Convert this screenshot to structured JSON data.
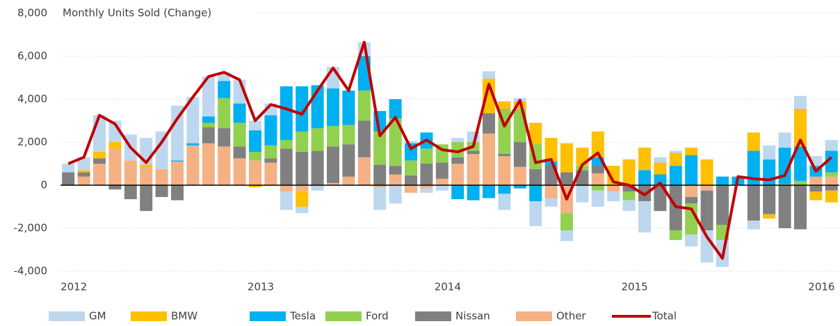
{
  "chart_data": {
    "type": "bar",
    "stacked": true,
    "title": "Monthly Units Sold (Change)",
    "categories": [
      "2012",
      null,
      null,
      null,
      null,
      null,
      null,
      null,
      null,
      null,
      null,
      null,
      "2013",
      null,
      null,
      null,
      null,
      null,
      null,
      null,
      null,
      null,
      null,
      null,
      "2014",
      null,
      null,
      null,
      null,
      null,
      null,
      null,
      null,
      null,
      null,
      null,
      "2015",
      null,
      null,
      null,
      null,
      null,
      null,
      null,
      null,
      null,
      null,
      null,
      "2016",
      null
    ],
    "ylim": [
      -4000,
      8000
    ],
    "yticks": [
      {
        "value": -4000,
        "label": "-4,000"
      },
      {
        "value": -2000,
        "label": "-2,000"
      },
      0,
      {
        "value": 2000,
        "label": "2,000"
      },
      {
        "value": 4000,
        "label": "4,000"
      },
      {
        "value": 6000,
        "label": "6,000"
      },
      {
        "value": 8000,
        "label": "8,000"
      }
    ],
    "grid": true,
    "legend": "bottom",
    "series": [
      {
        "name": "GM",
        "color": "#bdd7ee",
        "values": [
          400,
          600,
          1700,
          1000,
          1200,
          1250,
          1750,
          2550,
          2150,
          1850,
          400,
          1100,
          450,
          550,
          -850,
          -300,
          -250,
          1000,
          0,
          650,
          -1050,
          -850,
          100,
          -200,
          -250,
          200,
          500,
          350,
          -750,
          150,
          -1150,
          -400,
          -500,
          -800,
          -750,
          -450,
          -500,
          -1450,
          250,
          100,
          -550,
          -1500,
          -1250,
          0,
          -400,
          650,
          700,
          600,
          450,
          500
        ]
      },
      {
        "name": "BMW",
        "color": "#ffc000",
        "values": [
          0,
          100,
          300,
          300,
          0,
          100,
          0,
          0,
          0,
          0,
          0,
          0,
          -100,
          0,
          0,
          -700,
          0,
          0,
          0,
          0,
          0,
          0,
          0,
          0,
          0,
          0,
          0,
          1600,
          350,
          350,
          1000,
          1100,
          1350,
          850,
          1200,
          900,
          1200,
          1050,
          550,
          600,
          350,
          1200,
          0,
          0,
          850,
          -200,
          0,
          1750,
          -400,
          -550
        ]
      },
      {
        "name": "Tesla",
        "color": "#00b0f0",
        "values": [
          0,
          0,
          0,
          0,
          0,
          0,
          0,
          50,
          100,
          300,
          800,
          900,
          1000,
          1400,
          2500,
          2100,
          2000,
          1750,
          1600,
          1600,
          950,
          900,
          800,
          750,
          0,
          -650,
          -700,
          -600,
          -400,
          -150,
          -750,
          150,
          0,
          0,
          400,
          0,
          0,
          700,
          500,
          900,
          1400,
          0,
          400,
          400,
          1600,
          1200,
          1700,
          1600,
          500,
          1000
        ]
      },
      {
        "name": "Ford",
        "color": "#92d050",
        "values": [
          0,
          0,
          0,
          0,
          0,
          0,
          0,
          0,
          0,
          200,
          1400,
          1100,
          400,
          600,
          400,
          950,
          1050,
          950,
          900,
          1400,
          1550,
          2200,
          700,
          700,
          850,
          700,
          400,
          0,
          2100,
          1550,
          1150,
          0,
          -800,
          200,
          -250,
          0,
          -400,
          0,
          0,
          -450,
          -1450,
          0,
          -700,
          0,
          0,
          0,
          50,
          200,
          0,
          200
        ]
      },
      {
        "name": "Nissan",
        "color": "#808080",
        "values": [
          600,
          200,
          250,
          -200,
          -650,
          -1200,
          -550,
          -700,
          0,
          750,
          850,
          550,
          0,
          200,
          1700,
          1550,
          1600,
          1700,
          1500,
          1700,
          950,
          400,
          450,
          1000,
          750,
          300,
          150,
          950,
          100,
          1150,
          750,
          950,
          600,
          700,
          350,
          0,
          -300,
          -750,
          -1200,
          -2100,
          -300,
          -1850,
          -1850,
          0,
          -1650,
          -1350,
          -2000,
          -2050,
          -300,
          -250
        ]
      },
      {
        "name": "Other",
        "color": "#f4b183",
        "values": [
          0,
          400,
          1000,
          1700,
          1150,
          850,
          750,
          1100,
          1850,
          1950,
          1800,
          1250,
          1150,
          1050,
          -300,
          -300,
          0,
          100,
          400,
          1300,
          -100,
          500,
          -350,
          -150,
          300,
          1000,
          1450,
          2400,
          1350,
          850,
          0,
          -600,
          -1300,
          0,
          550,
          -300,
          0,
          0,
          0,
          0,
          -550,
          -250,
          0,
          0,
          0,
          0,
          0,
          0,
          400,
          400
        ]
      },
      {
        "name": "Total",
        "type": "line",
        "color": "#c00000",
        "values": [
          1000,
          1300,
          3250,
          2850,
          1750,
          1050,
          2000,
          3100,
          4100,
          5050,
          5250,
          4900,
          3000,
          3750,
          3550,
          3300,
          4400,
          5450,
          4400,
          6650,
          2300,
          3150,
          1700,
          2100,
          1650,
          1550,
          1800,
          4700,
          2750,
          3950,
          1050,
          1200,
          -650,
          950,
          1500,
          150,
          0,
          -450,
          100,
          -1000,
          -1100,
          -2400,
          -3400,
          400,
          300,
          250,
          450,
          2100,
          650,
          1300
        ]
      }
    ]
  }
}
